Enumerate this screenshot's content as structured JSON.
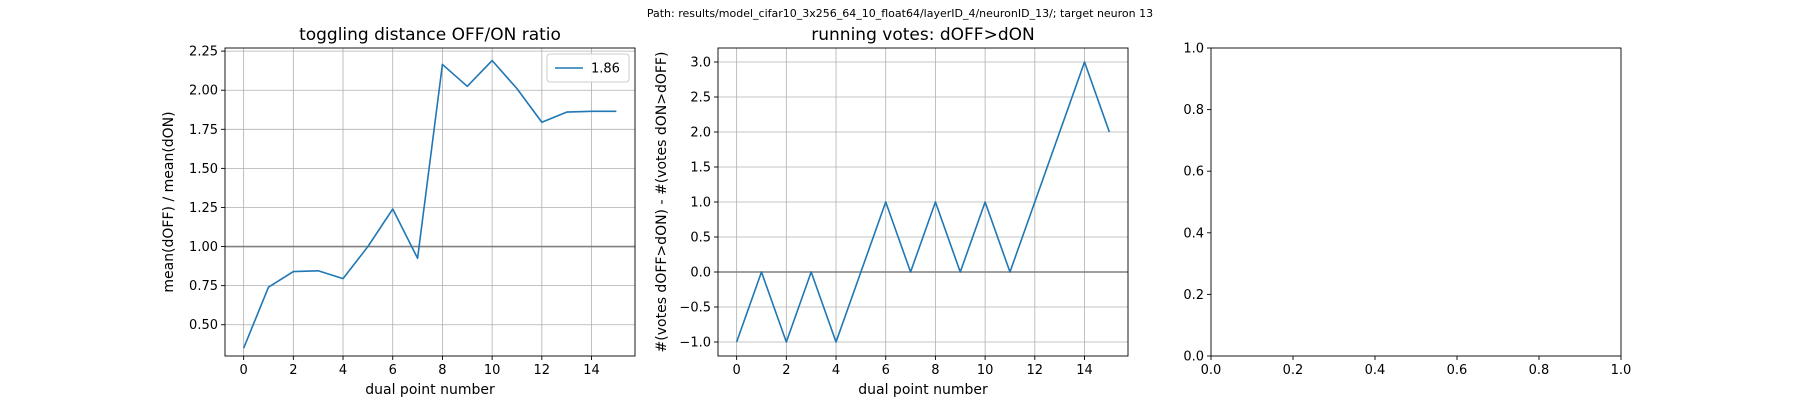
{
  "figure": {
    "suptitle": "Path: results/model_cifar10_3x256_64_10_float64/layerID_4/neuronID_13/; target neuron 13"
  },
  "chart_data": [
    {
      "type": "line",
      "title": "toggling distance OFF/ON ratio",
      "xlabel": "dual point number",
      "ylabel": "mean(dOFF) / mean(dON)",
      "xlim": [
        -0.75,
        15.75
      ],
      "ylim": [
        0.3,
        2.27
      ],
      "xticks": [
        0,
        2,
        4,
        6,
        8,
        10,
        12,
        14
      ],
      "yticks": [
        0.5,
        0.75,
        1.0,
        1.25,
        1.5,
        1.75,
        2.0,
        2.25
      ],
      "ytick_labels": [
        "0.50",
        "0.75",
        "1.00",
        "1.25",
        "1.50",
        "1.75",
        "2.00",
        "2.25"
      ],
      "grid": true,
      "hline": 1.0,
      "legend": {
        "placement": "top-right",
        "entries": [
          "1.86"
        ]
      },
      "series": [
        {
          "name": "1.86",
          "color": "#1f77b4",
          "x": [
            0,
            1,
            2,
            3,
            4,
            5,
            6,
            7,
            8,
            9,
            10,
            11,
            12,
            13,
            14,
            15
          ],
          "y": [
            0.35,
            0.74,
            0.84,
            0.845,
            0.795,
            1.0,
            1.24,
            0.925,
            2.165,
            2.025,
            2.19,
            2.01,
            1.795,
            1.86,
            1.865,
            1.865
          ]
        }
      ]
    },
    {
      "type": "line",
      "title": "running votes: dOFF>dON",
      "xlabel": "dual point number",
      "ylabel": "#(votes dOFF>dON) - #(votes dON>dOFF)",
      "xlim": [
        -0.75,
        15.75
      ],
      "ylim": [
        -1.2,
        3.2
      ],
      "xticks": [
        0,
        2,
        4,
        6,
        8,
        10,
        12,
        14
      ],
      "yticks": [
        -1.0,
        -0.5,
        0.0,
        0.5,
        1.0,
        1.5,
        2.0,
        2.5,
        3.0
      ],
      "ytick_labels": [
        "−1.0",
        "−0.5",
        "0.0",
        "0.5",
        "1.0",
        "1.5",
        "2.0",
        "2.5",
        "3.0"
      ],
      "grid": true,
      "hline": 0.0,
      "series": [
        {
          "color": "#1f77b4",
          "x": [
            0,
            1,
            2,
            3,
            4,
            5,
            6,
            7,
            8,
            9,
            10,
            11,
            12,
            13,
            14,
            15
          ],
          "y": [
            -1,
            0,
            -1,
            0,
            -1,
            0,
            1,
            0,
            1,
            0,
            1,
            0,
            1,
            2,
            3,
            2
          ]
        }
      ]
    },
    {
      "type": "line",
      "title": "",
      "xlabel": "",
      "ylabel": "",
      "xlim": [
        0,
        1
      ],
      "ylim": [
        0,
        1
      ],
      "xticks": [
        0.0,
        0.2,
        0.4,
        0.6,
        0.8,
        1.0
      ],
      "xtick_labels": [
        "0.0",
        "0.2",
        "0.4",
        "0.6",
        "0.8",
        "1.0"
      ],
      "yticks": [
        0.0,
        0.2,
        0.4,
        0.6,
        0.8,
        1.0
      ],
      "ytick_labels": [
        "0.0",
        "0.2",
        "0.4",
        "0.6",
        "0.8",
        "1.0"
      ],
      "grid": false,
      "series": []
    }
  ]
}
